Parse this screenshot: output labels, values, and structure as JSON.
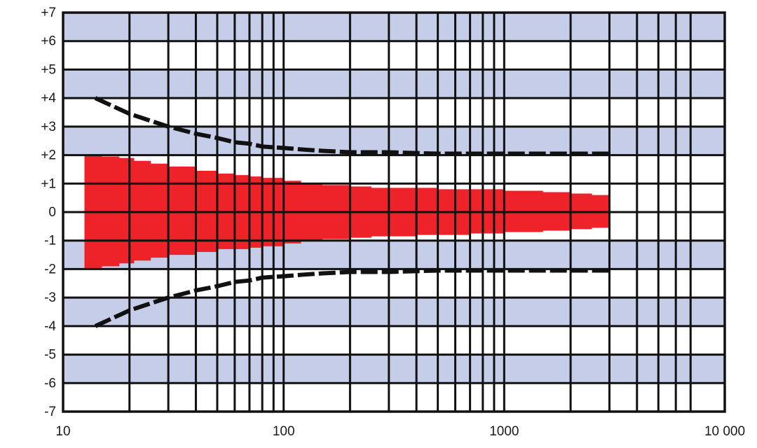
{
  "chart_data": {
    "type": "area",
    "x_scale": "log",
    "xlim": [
      10,
      10000
    ],
    "ylim": [
      -7,
      7
    ],
    "x_tick_labels": [
      {
        "value": 10,
        "label": "10"
      },
      {
        "value": 100,
        "label": "100"
      },
      {
        "value": 1000,
        "label": "1000"
      },
      {
        "value": 10000,
        "label": "10 000"
      }
    ],
    "y_tick_labels": [
      {
        "value": 7,
        "label": "+7"
      },
      {
        "value": 6,
        "label": "+6"
      },
      {
        "value": 5,
        "label": "+5"
      },
      {
        "value": 4,
        "label": "+4"
      },
      {
        "value": 3,
        "label": "+3"
      },
      {
        "value": 2,
        "label": "+2"
      },
      {
        "value": 1,
        "label": "+1"
      },
      {
        "value": 0,
        "label": "0"
      },
      {
        "value": -1,
        "label": "-1"
      },
      {
        "value": -2,
        "label": "-2"
      },
      {
        "value": -3,
        "label": "-3"
      },
      {
        "value": -4,
        "label": "-4"
      },
      {
        "value": -5,
        "label": "-5"
      },
      {
        "value": -6,
        "label": "-6"
      },
      {
        "value": -7,
        "label": "-7"
      }
    ],
    "x_gridlines": [
      20,
      30,
      40,
      50,
      60,
      70,
      80,
      90,
      100,
      200,
      300,
      400,
      500,
      600,
      700,
      800,
      900,
      1000,
      2000,
      3000,
      4000,
      5000,
      6000,
      7000
    ],
    "y_gridlines": [
      -6,
      -5,
      -4,
      -3,
      -2,
      -1,
      0,
      1,
      2,
      3,
      4,
      5,
      6
    ],
    "background_bands": [
      {
        "from": 6,
        "to": 7
      },
      {
        "from": 4,
        "to": 5
      },
      {
        "from": 2,
        "to": 3
      },
      {
        "from": -2,
        "to": -1
      },
      {
        "from": -4,
        "to": -3
      },
      {
        "from": -6,
        "to": -5
      }
    ],
    "band_series": {
      "x": [
        12.5,
        15,
        18,
        21,
        25,
        30,
        40,
        50,
        60,
        70,
        80,
        100,
        120,
        150,
        200,
        250,
        300,
        400,
        500,
        700,
        1000,
        1500,
        2000,
        2500,
        3000
      ],
      "upper": [
        2.0,
        1.95,
        1.9,
        1.8,
        1.7,
        1.6,
        1.45,
        1.35,
        1.3,
        1.25,
        1.2,
        1.1,
        1.0,
        0.95,
        0.9,
        0.85,
        0.85,
        0.85,
        0.8,
        0.8,
        0.75,
        0.7,
        0.65,
        0.6,
        0.55
      ],
      "lower": [
        -2.0,
        -1.9,
        -1.8,
        -1.7,
        -1.6,
        -1.5,
        -1.4,
        -1.3,
        -1.3,
        -1.25,
        -1.2,
        -1.1,
        -1.0,
        -0.95,
        -0.9,
        -0.85,
        -0.85,
        -0.8,
        -0.8,
        -0.75,
        -0.7,
        -0.65,
        -0.6,
        -0.55,
        -0.5
      ]
    },
    "limit_series": {
      "x": [
        14,
        17,
        20,
        25,
        30,
        40,
        50,
        60,
        70,
        80,
        100,
        120,
        150,
        200,
        300,
        500,
        1000,
        2000,
        3000
      ],
      "upper": [
        4.0,
        3.7,
        3.45,
        3.2,
        3.0,
        2.75,
        2.6,
        2.45,
        2.4,
        2.3,
        2.25,
        2.2,
        2.15,
        2.1,
        2.1,
        2.05,
        2.05,
        2.05,
        2.05
      ],
      "lower": [
        -4.0,
        -3.7,
        -3.45,
        -3.2,
        -3.0,
        -2.75,
        -2.6,
        -2.45,
        -2.4,
        -2.3,
        -2.25,
        -2.2,
        -2.15,
        -2.1,
        -2.1,
        -2.05,
        -2.05,
        -2.05,
        -2.05
      ]
    },
    "colors": {
      "band_fill": "#ee2229",
      "limit_line": "#111111",
      "background_band": "#c5cde8",
      "grid": "#111111"
    }
  }
}
